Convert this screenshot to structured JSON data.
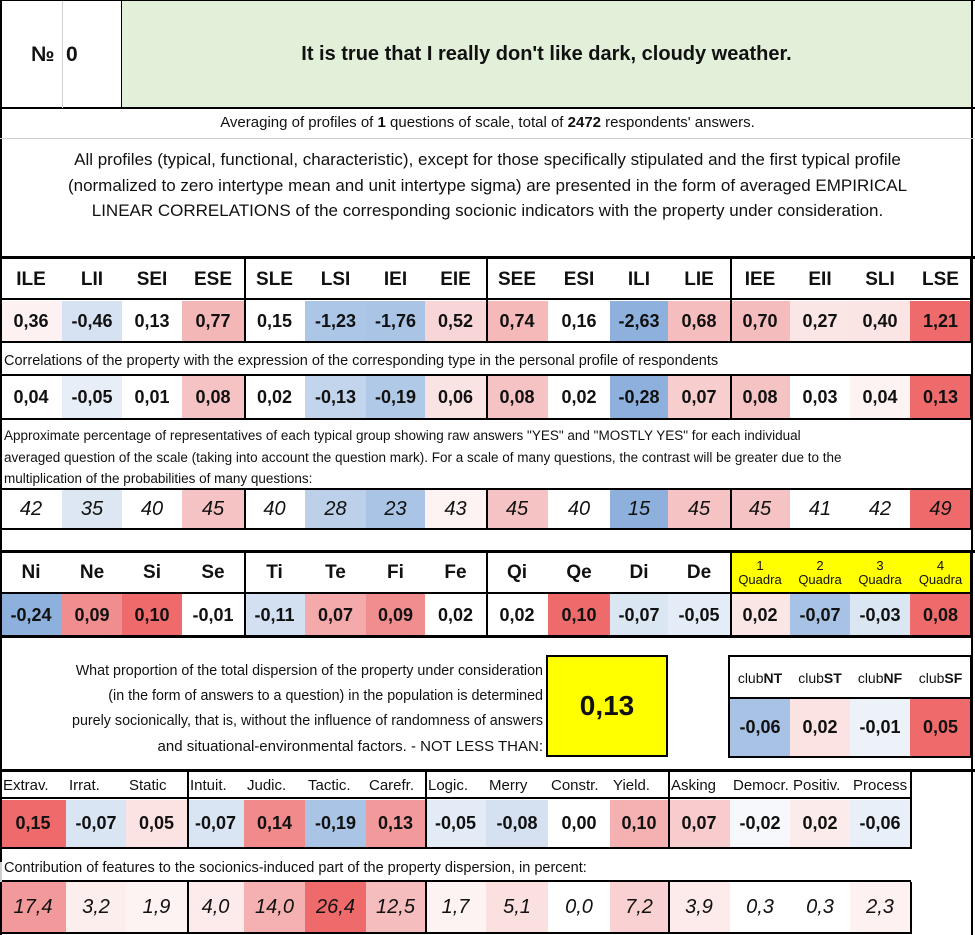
{
  "header": {
    "number_label": "№",
    "number": "0",
    "question": "It is true that I really don't like dark, cloudy weather."
  },
  "averaging": {
    "pre": "Averaging of profiles of ",
    "count": "1",
    "mid": " questions of scale, total of ",
    "respondents": "2472",
    "post": " respondents' answers."
  },
  "description": [
    "All profiles (typical, functional, characteristic), except for those specifically stipulated and the first typical profile",
    "(normalized to zero intertype mean and unit intertype sigma) are presented in the form of averaged EMPIRICAL",
    "LINEAR CORRELATIONS of the corresponding socionic indicators with the property under consideration."
  ],
  "types": [
    "ILE",
    "LII",
    "SEI",
    "ESE",
    "SLE",
    "LSI",
    "IEI",
    "EIE",
    "SEE",
    "ESI",
    "ILI",
    "LIE",
    "IEE",
    "EII",
    "SLI",
    "LSE"
  ],
  "type_profile": [
    "0,36",
    "-0,46",
    "0,13",
    "0,77",
    "0,15",
    "-1,23",
    "-1,76",
    "0,52",
    "0,74",
    "0,16",
    "-2,63",
    "0,68",
    "0,70",
    "0,27",
    "0,40",
    "1,21"
  ],
  "type_profile_colors": [
    "#fdf1f1",
    "#d6e2f2",
    "#ffffff",
    "#f4b7b8",
    "#ffffff",
    "#abc6e6",
    "#a9c4e5",
    "#f8d5d6",
    "#f5b9ba",
    "#ffffff",
    "#8db0dd",
    "#f5bdbe",
    "#f5bcbd",
    "#fbe6e6",
    "#fbe4e4",
    "#ee6a6b"
  ],
  "correlation_caption": "Correlations of the property with the expression of the corresponding type in the personal profile of respondents",
  "correlations": [
    "0,04",
    "-0,05",
    "0,01",
    "0,08",
    "0,02",
    "-0,13",
    "-0,19",
    "0,06",
    "0,08",
    "0,02",
    "-0,28",
    "0,07",
    "0,08",
    "0,03",
    "0,04",
    "0,13"
  ],
  "correlation_colors": [
    "#ffffff",
    "#e7eef8",
    "#ffffff",
    "#f6c3c4",
    "#ffffff",
    "#c2d5ec",
    "#b0c9e7",
    "#fae3e3",
    "#f6c3c4",
    "#ffffff",
    "#8db0dd",
    "#f8cdce",
    "#f6c3c4",
    "#ffffff",
    "#fdf3f3",
    "#ee6a6b"
  ],
  "percentage_caption": [
    "Approximate percentage of representatives of each typical group showing raw answers \"YES\" and \"MOSTLY YES\" for each individual",
    "averaged question of the scale (taking into account the question mark). For a scale of many questions, the contrast will be greater due to the",
    "multiplication of the probabilities of many questions:"
  ],
  "percentages": [
    "42",
    "35",
    "40",
    "45",
    "40",
    "28",
    "23",
    "43",
    "45",
    "40",
    "15",
    "45",
    "45",
    "41",
    "42",
    "49"
  ],
  "percentage_colors": [
    "#ffffff",
    "#dde7f4",
    "#ffffff",
    "#f6c3c4",
    "#ffffff",
    "#bcd0ea",
    "#a9c4e5",
    "#fdf3f3",
    "#f6c3c4",
    "#ffffff",
    "#8db0dd",
    "#f6c3c4",
    "#f6c3c4",
    "#ffffff",
    "#ffffff",
    "#ee6a6b"
  ],
  "functions": [
    "Ni",
    "Ne",
    "Si",
    "Se",
    "Ti",
    "Te",
    "Fi",
    "Fe",
    "Qi",
    "Qe",
    "Di",
    "De"
  ],
  "function_values": [
    "-0,24",
    "0,09",
    "0,10",
    "-0,01",
    "-0,11",
    "0,07",
    "0,09",
    "0,02",
    "0,02",
    "0,10",
    "-0,07",
    "-0,05"
  ],
  "function_colors": [
    "#8db0dd",
    "#f08e8f",
    "#ee6a6b",
    "#ffffff",
    "#d3e0f1",
    "#f4a9aa",
    "#f08e8f",
    "#ffffff",
    "#ffffff",
    "#ee6a6b",
    "#dbe6f3",
    "#e4ecf7"
  ],
  "quadras": [
    {
      "num": "1",
      "label": "Quadra"
    },
    {
      "num": "2",
      "label": "Quadra"
    },
    {
      "num": "3",
      "label": "Quadra"
    },
    {
      "num": "4",
      "label": "Quadra"
    }
  ],
  "quadra_values": [
    "0,02",
    "-0,07",
    "-0,03",
    "0,08"
  ],
  "quadra_colors": [
    "#fbe6e6",
    "#a7c2e4",
    "#dbe6f3",
    "#ee6a6b"
  ],
  "dispersion": {
    "lines": [
      "What proportion of the total dispersion of the property under consideration",
      "(in the form of answers to a question) in the population is determined",
      "purely socionically, that is, without the influence of randomness of answers",
      "and situational-environmental factors. - NOT LESS THAN:"
    ],
    "value": "0,13"
  },
  "clubs": [
    {
      "pre": "club",
      "bold": "NT"
    },
    {
      "pre": "club",
      "bold": "ST"
    },
    {
      "pre": "club",
      "bold": "NF"
    },
    {
      "pre": "club",
      "bold": "SF"
    }
  ],
  "club_values": [
    "-0,06",
    "0,02",
    "-0,01",
    "0,05"
  ],
  "club_colors": [
    "#a7c2e4",
    "#fbe3e3",
    "#edf2f9",
    "#ee6a6b"
  ],
  "features": [
    "Extrav.",
    "Irrat.",
    "Static",
    "Intuit.",
    "Judic.",
    "Tactic.",
    "Carefr.",
    "Logic.",
    "Merry",
    "Constr.",
    "Yield.",
    "Asking",
    "Democr.",
    "Positiv.",
    "Process"
  ],
  "feature_values": [
    "0,15",
    "-0,07",
    "0,05",
    "-0,07",
    "0,14",
    "-0,19",
    "0,13",
    "-0,05",
    "-0,08",
    "0,00",
    "0,10",
    "0,07",
    "-0,02",
    "0,02",
    "-0,06"
  ],
  "feature_colors": [
    "#ee6a6b",
    "#dae5f3",
    "#fbe3e3",
    "#dae5f3",
    "#f08a8b",
    "#a9c4e5",
    "#f29a9b",
    "#e3ebf6",
    "#d5e1f1",
    "#ffffff",
    "#f5b1b2",
    "#f8cbcc",
    "#f6f8fc",
    "#fcebeb",
    "#e8eff8"
  ],
  "contribution_caption": "Contribution of features to the socionics-induced part of the property dispersion, in percent:",
  "contributions": [
    "17,4",
    "3,2",
    "1,9",
    "4,0",
    "14,0",
    "26,4",
    "12,5",
    "1,7",
    "5,1",
    "0,0",
    "7,2",
    "3,9",
    "0,3",
    "0,3",
    "2,3"
  ],
  "contribution_colors": [
    "#f29a9b",
    "#fdeeee",
    "#fdf3f3",
    "#fdeaea",
    "#f5b1b2",
    "#ee6a6b",
    "#f6bdbe",
    "#fdf3f3",
    "#fbe0e0",
    "#ffffff",
    "#f9d1d2",
    "#fdeaea",
    "#ffffff",
    "#ffffff",
    "#fef1f1"
  ],
  "colors": {
    "header_green": "#e2efd9",
    "quadra_yellow": "#ffff00",
    "dispersion_yellow": "#ffff00"
  }
}
